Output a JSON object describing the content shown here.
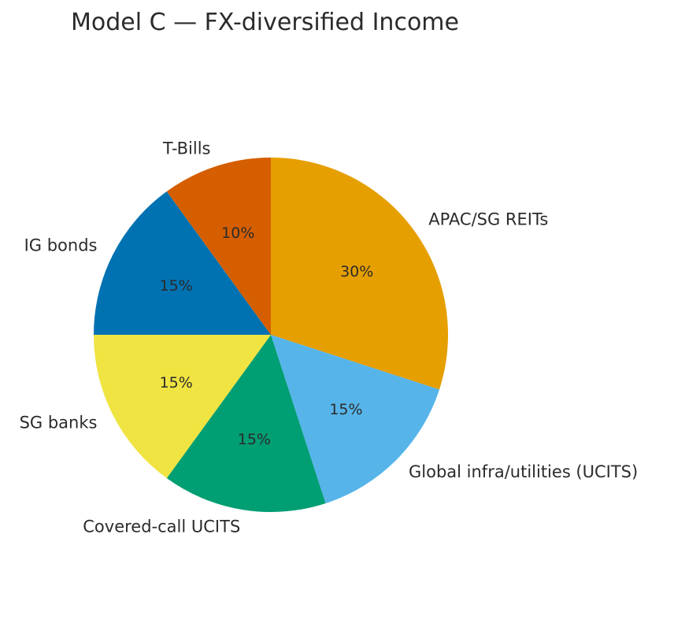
{
  "chart_data": {
    "type": "pie",
    "title": "Model C — FX-diversified Income",
    "start_angle_deg": 90,
    "direction": "clockwise",
    "slices": [
      {
        "label": "APAC/SG REITs",
        "value": 30,
        "pct_label": "30%",
        "color": "#E69F00"
      },
      {
        "label": "Global infra/utilities (UCITS)",
        "value": 15,
        "pct_label": "15%",
        "color": "#56B4E9"
      },
      {
        "label": "Covered-call UCITS",
        "value": 15,
        "pct_label": "15%",
        "color": "#009E73"
      },
      {
        "label": "SG banks",
        "value": 15,
        "pct_label": "15%",
        "color": "#F0E442"
      },
      {
        "label": "IG bonds",
        "value": 15,
        "pct_label": "15%",
        "color": "#0072B2"
      },
      {
        "label": "T-Bills",
        "value": 10,
        "pct_label": "10%",
        "color": "#D55E00"
      }
    ]
  }
}
